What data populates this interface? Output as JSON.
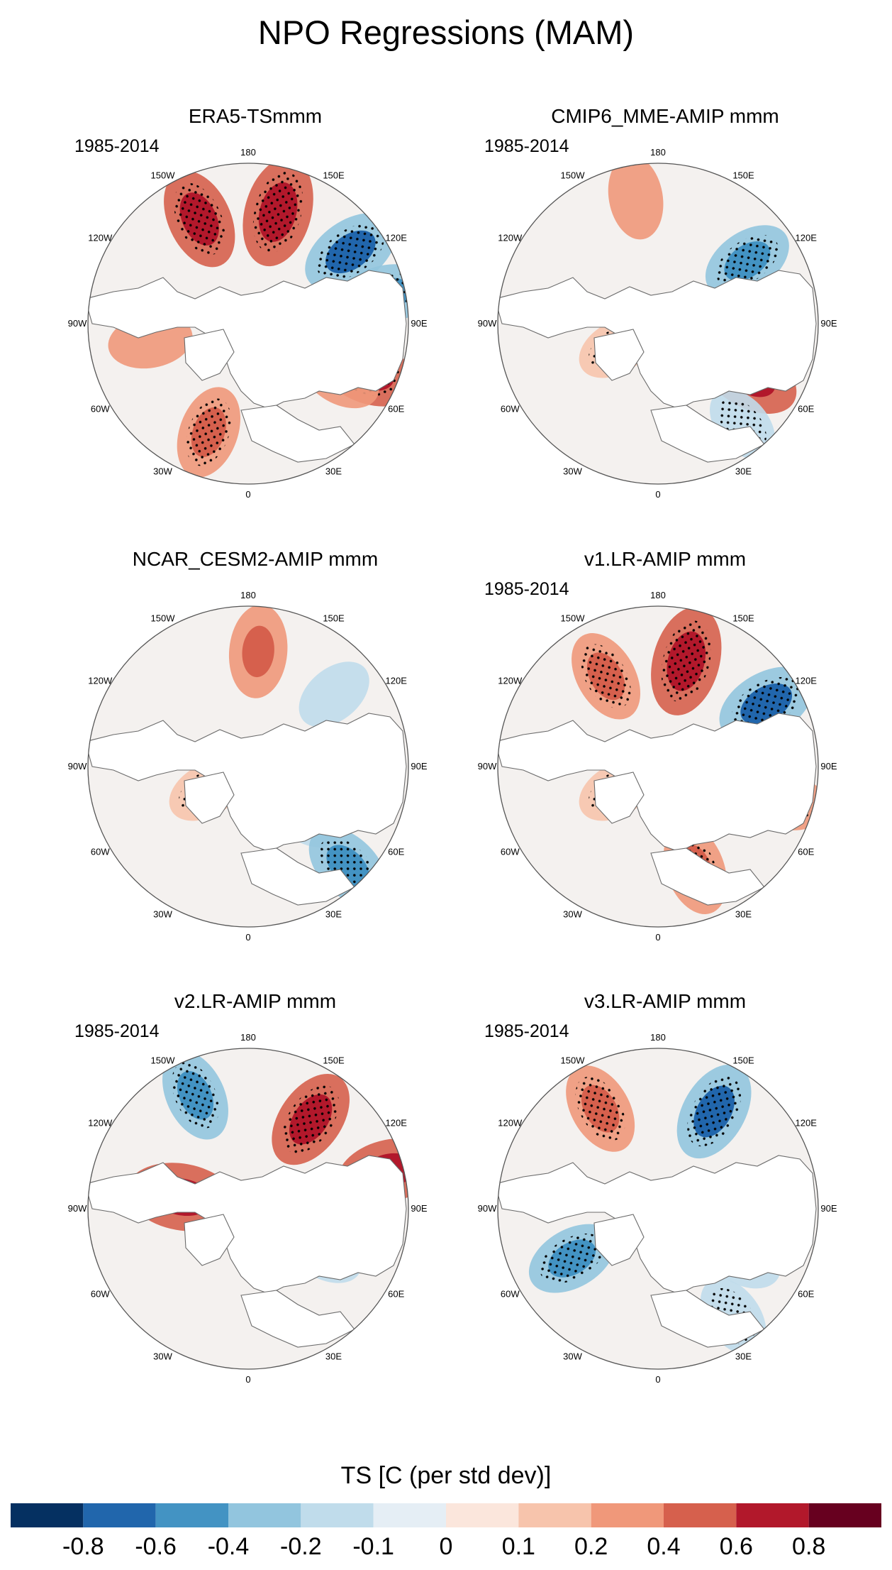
{
  "figure": {
    "title": "NPO Regressions (MAM)"
  },
  "panels": [
    {
      "title": "ERA5-TSmmm",
      "years": "1985-2014",
      "blobs": [
        {
          "lon": 195,
          "r": 0.72,
          "value": 0.5,
          "stipple": true
        },
        {
          "lon": 155,
          "r": 0.72,
          "value": 0.4,
          "stipple": true
        },
        {
          "lon": 235,
          "r": 0.78,
          "value": -0.4,
          "stipple": true
        },
        {
          "lon": 258,
          "r": 0.88,
          "value": -0.3,
          "stipple": true
        },
        {
          "lon": 292,
          "r": 0.8,
          "value": 0.4,
          "stipple": true
        },
        {
          "lon": 300,
          "r": 0.66,
          "value": 0.2,
          "stipple": false
        },
        {
          "lon": 80,
          "r": 0.62,
          "value": 0.2,
          "stipple": false
        },
        {
          "lon": 20,
          "r": 0.72,
          "value": 0.3,
          "stipple": true
        }
      ]
    },
    {
      "title": "CMIP6_MME-AMIP  mmm",
      "years": "1985-2014",
      "blobs": [
        {
          "lon": 235,
          "r": 0.68,
          "value": -0.3,
          "stipple": true
        },
        {
          "lon": 170,
          "r": 0.8,
          "value": 0.2,
          "stipple": false
        },
        {
          "lon": 60,
          "r": 0.3,
          "value": 0.15,
          "stipple": true
        },
        {
          "lon": 300,
          "r": 0.66,
          "value": 0.4,
          "stipple": false
        },
        {
          "lon": 320,
          "r": 0.82,
          "value": -0.15,
          "stipple": true
        }
      ]
    },
    {
      "title": "NCAR_CESM2-AMIP  mmm",
      "years": "",
      "blobs": [
        {
          "lon": 185,
          "r": 0.72,
          "value": 0.3,
          "stipple": false
        },
        {
          "lon": 230,
          "r": 0.7,
          "value": -0.15,
          "stipple": false
        },
        {
          "lon": 60,
          "r": 0.3,
          "value": 0.15,
          "stipple": true
        },
        {
          "lon": 310,
          "r": 0.45,
          "value": -0.2,
          "stipple": false
        },
        {
          "lon": 315,
          "r": 0.88,
          "value": -0.3,
          "stipple": true
        }
      ]
    },
    {
      "title": "v1.LR-AMIP  mmm",
      "years": "1985-2014",
      "blobs": [
        {
          "lon": 195,
          "r": 0.68,
          "value": 0.5,
          "stipple": true
        },
        {
          "lon": 240,
          "r": 0.78,
          "value": -0.4,
          "stipple": true
        },
        {
          "lon": 150,
          "r": 0.65,
          "value": 0.3,
          "stipple": true
        },
        {
          "lon": 60,
          "r": 0.3,
          "value": 0.15,
          "stipple": true
        },
        {
          "lon": 340,
          "r": 0.68,
          "value": 0.3,
          "stipple": true
        },
        {
          "lon": 285,
          "r": 0.8,
          "value": 0.3,
          "stipple": true
        }
      ]
    },
    {
      "title": "v2.LR-AMIP  mmm",
      "years": "1985-2014",
      "blobs": [
        {
          "lon": 215,
          "r": 0.68,
          "value": 0.4,
          "stipple": true
        },
        {
          "lon": 155,
          "r": 0.78,
          "value": -0.3,
          "stipple": true
        },
        {
          "lon": 255,
          "r": 0.9,
          "value": 0.4,
          "stipple": false
        },
        {
          "lon": 100,
          "r": 0.42,
          "value": 0.5,
          "stipple": false
        },
        {
          "lon": 300,
          "r": 0.55,
          "value": -0.15,
          "stipple": false
        }
      ]
    },
    {
      "title": "v3.LR-AMIP  mmm",
      "years": "1985-2014",
      "blobs": [
        {
          "lon": 210,
          "r": 0.7,
          "value": -0.4,
          "stipple": true
        },
        {
          "lon": 150,
          "r": 0.72,
          "value": 0.3,
          "stipple": true
        },
        {
          "lon": 60,
          "r": 0.62,
          "value": -0.3,
          "stipple": true
        },
        {
          "lon": 300,
          "r": 0.6,
          "value": -0.2,
          "stipple": false
        },
        {
          "lon": 325,
          "r": 0.82,
          "value": -0.2,
          "stipple": true
        }
      ]
    }
  ],
  "longitude_labels": [
    "180",
    "150E",
    "120E",
    "90E",
    "60E",
    "30E",
    "0",
    "30W",
    "60W",
    "90W",
    "120W",
    "150W"
  ],
  "colorbar": {
    "title": "TS [C (per std dev)]",
    "colors": [
      "#053061",
      "#2166ac",
      "#4393c3",
      "#92c5de",
      "#c0dceb",
      "#e5eef5",
      "#fbe6dc",
      "#f7c4ac",
      "#f0987a",
      "#d6604d",
      "#b2182b",
      "#67001f"
    ],
    "tick_labels": [
      "-0.8",
      "-0.6",
      "-0.4",
      "-0.2",
      "-0.1",
      "0",
      "0.1",
      "0.2",
      "0.4",
      "0.6",
      "0.8"
    ],
    "levels": [
      -0.8,
      -0.6,
      -0.4,
      -0.2,
      -0.1,
      0,
      0.1,
      0.2,
      0.4,
      0.6,
      0.8
    ]
  }
}
